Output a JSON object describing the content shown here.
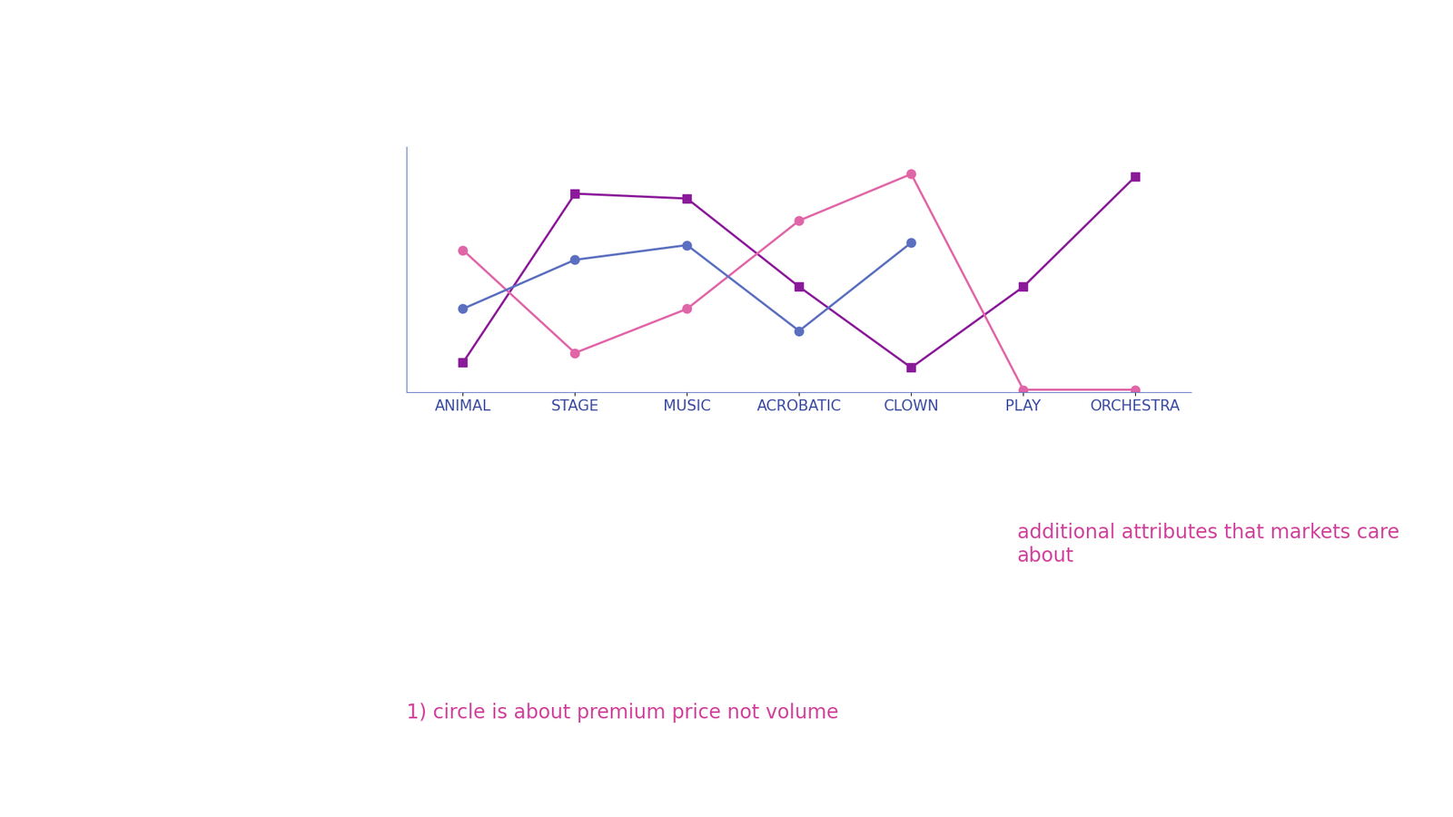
{
  "chart_data": {
    "type": "line",
    "categories": [
      "ANIMAL",
      "STAGE",
      "MUSIC",
      "ACROBATIC",
      "CLOWN",
      "PLAY",
      "ORCHESTRA"
    ],
    "series": [
      {
        "color": "#8b1a9a",
        "marker": "square",
        "line_style": "solid",
        "values": [
          1.2,
          8.1,
          7.9,
          4.3,
          1.0,
          4.3,
          8.8
        ]
      },
      {
        "color": "#e066a8",
        "marker": "circle",
        "line_style": "solid",
        "values": [
          5.8,
          1.6,
          3.4,
          7.0,
          8.9,
          0.1,
          0.1
        ]
      },
      {
        "color": "#5b6fc0",
        "marker": "circle",
        "line_style": "solid",
        "values": [
          3.4,
          5.4,
          6.0,
          2.5,
          6.1,
          null,
          null
        ]
      }
    ],
    "ylim": [
      0,
      10
    ],
    "tick_labels": "x",
    "grid": false,
    "annotations": [
      "additional attributes that markets care about",
      "1) circle is about premium price not volume"
    ]
  }
}
